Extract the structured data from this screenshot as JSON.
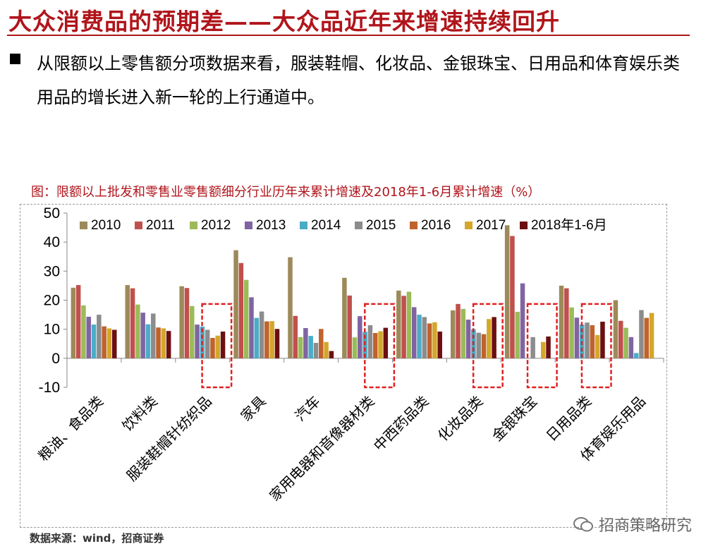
{
  "slide": {
    "title": "大众消费品的预期差——大众品近年来增速持续回升",
    "bullet": "从限额以上零售额分项数据来看，服装鞋帽、化妆品、金银珠宝、日用品和体育娱乐类用品的增长进入新一轮的上行通道中。"
  },
  "chart_caption": "图：限额以上批发和零售业零售额细分行业历年来累计增速及2018年1-6月累计增速（%）",
  "source": "数据来源：wind，招商证券",
  "watermark": "招商策略研究",
  "chart_data": {
    "type": "bar",
    "ylim": [
      -10,
      50
    ],
    "yticks": [
      -10,
      0,
      10,
      20,
      30,
      40,
      50
    ],
    "grid": false,
    "legend_position": "top",
    "categories": [
      "粮油、食品类",
      "饮料类",
      "服装鞋帽针纺织品",
      "家具",
      "汽车",
      "家用电器和音像器材类",
      "中西药品类",
      "化妆品类",
      "金银珠宝",
      "日用品类",
      "体育娱乐用品"
    ],
    "series": [
      {
        "name": "2010",
        "color": "#9c8a5a",
        "values": [
          24.3,
          25.2,
          24.8,
          37.2,
          34.8,
          27.7,
          23.3,
          16.5,
          45.8,
          25.0,
          20.0
        ]
      },
      {
        "name": "2011",
        "color": "#c0504d",
        "values": [
          25.2,
          24.1,
          24.2,
          32.8,
          14.6,
          21.6,
          21.5,
          18.7,
          42.1,
          24.1,
          12.9
        ]
      },
      {
        "name": "2012",
        "color": "#9bbb59",
        "values": [
          18.2,
          18.5,
          18.0,
          27.0,
          7.3,
          7.2,
          22.9,
          17.0,
          16.0,
          17.5,
          10.5
        ]
      },
      {
        "name": "2013",
        "color": "#8064a2",
        "values": [
          14.3,
          15.7,
          11.6,
          21.0,
          10.4,
          14.5,
          17.6,
          13.3,
          25.8,
          14.0,
          7.3
        ]
      },
      {
        "name": "2014",
        "color": "#4bacc6",
        "values": [
          11.6,
          11.7,
          10.9,
          13.9,
          7.7,
          9.1,
          15.0,
          10.0,
          0.0,
          11.6,
          1.8
        ]
      },
      {
        "name": "2015",
        "color": "#8c8c8c",
        "values": [
          15.0,
          15.4,
          9.8,
          16.1,
          5.3,
          11.4,
          14.2,
          8.8,
          7.3,
          12.3,
          16.6
        ]
      },
      {
        "name": "2016",
        "color": "#c0622b",
        "values": [
          11.0,
          10.6,
          7.0,
          12.7,
          10.1,
          8.7,
          12.0,
          8.3,
          0.0,
          11.4,
          13.9
        ]
      },
      {
        "name": "2017",
        "color": "#d4a62a",
        "values": [
          10.3,
          10.3,
          7.8,
          12.8,
          5.6,
          9.3,
          12.4,
          13.5,
          5.6,
          8.0,
          15.6
        ]
      },
      {
        "name": "2018年1-6月",
        "color": "#6b0f12",
        "values": [
          9.8,
          9.4,
          9.2,
          10.1,
          2.5,
          10.5,
          9.2,
          14.2,
          7.5,
          12.6,
          0.0
        ]
      }
    ],
    "highlighted_categories": [
      "服装鞋帽针纺织品",
      "家用电器和音像器材类",
      "化妆品类",
      "金银珠宝",
      "日用品类"
    ],
    "highlight_color": "#e02020"
  }
}
